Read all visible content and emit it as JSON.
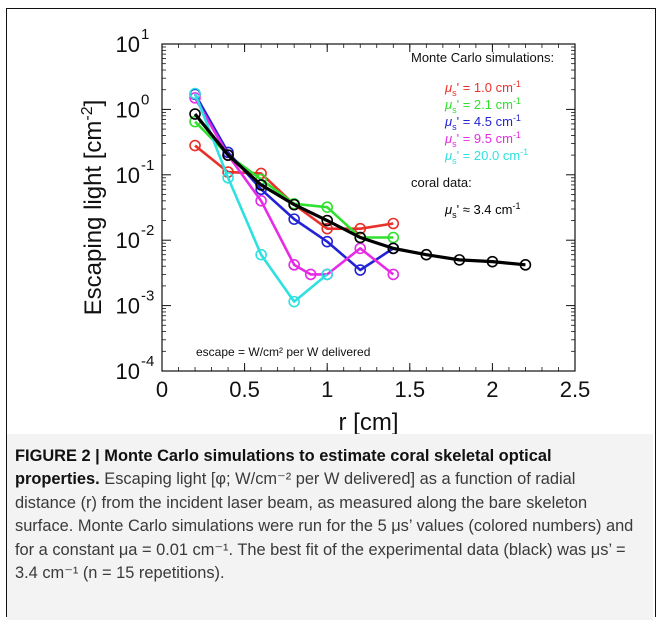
{
  "chart_data": {
    "type": "line",
    "xlabel": "r [cm]",
    "ylabel": "Escaping light [cm^-2]",
    "xlim": [
      0,
      2.5
    ],
    "ylim": [
      0.0001,
      10
    ],
    "y_scale": "log",
    "x_ticks": [
      "0",
      "0.5",
      "1",
      "1.5",
      "2",
      "2.5"
    ],
    "y_ticks": [
      {
        "base": "10",
        "exp": "1"
      },
      {
        "base": "10",
        "exp": "0"
      },
      {
        "base": "10",
        "exp": "-1"
      },
      {
        "base": "10",
        "exp": "-2"
      },
      {
        "base": "10",
        "exp": "-3"
      },
      {
        "base": "10",
        "exp": "-4"
      }
    ],
    "legend_title": "Monte Carlo simulations:",
    "legend_subtitle": "coral data:",
    "annotation": "escape = W/cm² per W delivered",
    "series": [
      {
        "name": "μs' = 1.0 cm-1",
        "mu": "μ",
        "sub": "s",
        "text": "' = 1.0 cm",
        "sup": "-1",
        "color": "#e8312b",
        "x": [
          0.2,
          0.4,
          0.6,
          0.8,
          1.0,
          1.2,
          1.4
        ],
        "y": [
          0.28,
          0.11,
          0.105,
          0.035,
          0.015,
          0.015,
          0.018
        ]
      },
      {
        "name": "μs' = 2.1 cm-1",
        "mu": "μ",
        "sub": "s",
        "text": "' = 2.1 cm",
        "sup": "-1",
        "color": "#2fe02f",
        "x": [
          0.2,
          0.4,
          0.6,
          0.8,
          1.0,
          1.2,
          1.4
        ],
        "y": [
          0.65,
          0.2,
          0.085,
          0.036,
          0.032,
          0.011,
          0.011
        ]
      },
      {
        "name": "μs' = 4.5 cm-1",
        "mu": "μ",
        "sub": "s",
        "text": "' = 4.5 cm",
        "sup": "-1",
        "color": "#2323d4",
        "x": [
          0.2,
          0.4,
          0.6,
          0.8,
          1.0,
          1.2,
          1.4
        ],
        "y": [
          1.7,
          0.22,
          0.06,
          0.021,
          0.0095,
          0.0035,
          0.0075
        ]
      },
      {
        "name": "μs' = 9.5 cm-1",
        "mu": "μ",
        "sub": "s",
        "text": "' = 9.5 cm",
        "sup": "-1",
        "color": "#e62be6",
        "x": [
          0.2,
          0.4,
          0.6,
          0.8,
          0.9,
          1.0,
          1.2,
          1.4
        ],
        "y": [
          1.5,
          0.2,
          0.04,
          0.0042,
          0.003,
          0.003,
          0.0075,
          0.003
        ]
      },
      {
        "name": "μs' = 20.0 cm-1",
        "mu": "μ",
        "sub": "s",
        "text": "' = 20.0 cm",
        "sup": "-1",
        "color": "#2fe0e0",
        "x": [
          0.2,
          0.4,
          0.6,
          0.8,
          1.0
        ],
        "y": [
          1.75,
          0.09,
          0.006,
          0.00115,
          0.003
        ]
      },
      {
        "name": "μs' ≈ 3.4 cm-1",
        "mu": "μ",
        "sub": "s",
        "text": "' ≈ 3.4 cm",
        "sup": "-1",
        "color": "#000000",
        "thick": true,
        "x": [
          0.2,
          0.4,
          0.6,
          0.8,
          1.0,
          1.2,
          1.4,
          1.6,
          1.8,
          2.0,
          2.2
        ],
        "y": [
          0.85,
          0.2,
          0.07,
          0.035,
          0.02,
          0.011,
          0.0075,
          0.006,
          0.005,
          0.0047,
          0.0042
        ]
      }
    ]
  },
  "caption": {
    "head": "FIGURE 2 | Monte Carlo simulations to estimate coral skeletal optical properties.",
    "body": " Escaping light [φ; W/cm⁻² per W delivered] as a function of radial distance (r) from the incident laser beam, as measured along the bare skeleton surface. Monte Carlo simulations were run for the 5 μs’ values (colored numbers) and for a constant μa = 0.01 cm⁻¹. The best fit of the experimental data (black) was μs’ = 3.4 cm⁻¹ (n = 15 repetitions)."
  }
}
